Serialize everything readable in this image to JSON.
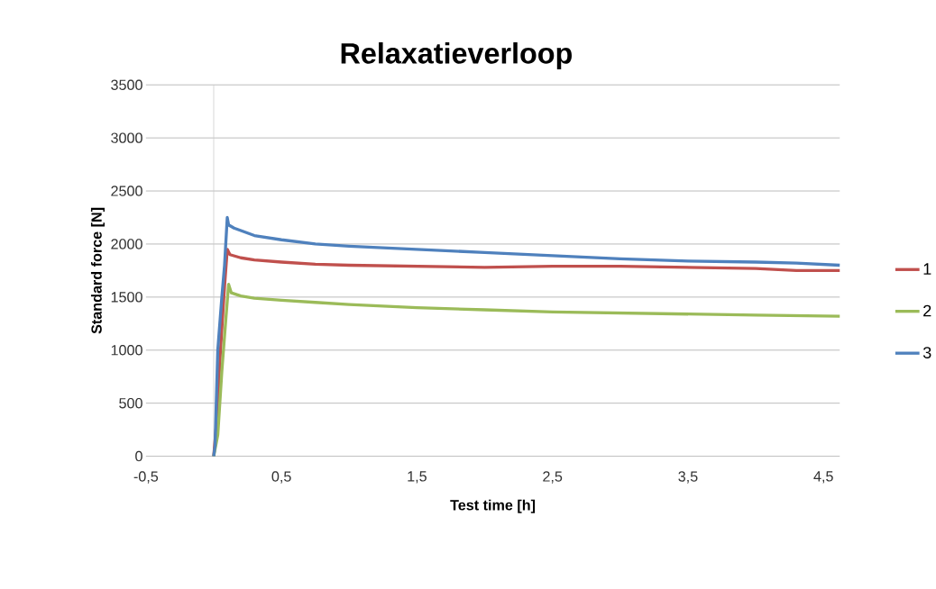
{
  "chart_data": {
    "type": "line",
    "title": "Relaxatieverloop",
    "xlabel": "Test time [h]",
    "ylabel": "Standard force [N]",
    "xlim": [
      -0.5,
      4.62
    ],
    "ylim": [
      0,
      3500
    ],
    "xticks": [
      {
        "value": -0.5,
        "label": "-0,5"
      },
      {
        "value": 0.5,
        "label": "0,5"
      },
      {
        "value": 1.5,
        "label": "1,5"
      },
      {
        "value": 2.5,
        "label": "2,5"
      },
      {
        "value": 3.5,
        "label": "3,5"
      },
      {
        "value": 4.5,
        "label": "4,5"
      }
    ],
    "yticks": [
      0,
      500,
      1000,
      1500,
      2000,
      2500,
      3000,
      3500
    ],
    "grid": "y",
    "legend": "right",
    "marker": "none",
    "line_style": "solid",
    "series": [
      {
        "name": "1",
        "color": "#c0504d",
        "x": [
          0.0,
          0.02,
          0.05,
          0.08,
          0.1,
          0.12,
          0.2,
          0.3,
          0.5,
          0.75,
          1,
          1.5,
          2,
          2.5,
          3,
          3.5,
          4,
          4.3,
          4.62
        ],
        "values": [
          0,
          300,
          1000,
          1600,
          1950,
          1900,
          1870,
          1850,
          1830,
          1810,
          1800,
          1790,
          1780,
          1790,
          1790,
          1780,
          1770,
          1750,
          1750
        ]
      },
      {
        "name": "2",
        "color": "#9bbb59",
        "x": [
          0.0,
          0.03,
          0.06,
          0.09,
          0.11,
          0.13,
          0.2,
          0.3,
          0.5,
          0.75,
          1,
          1.5,
          2,
          2.5,
          3,
          3.5,
          4,
          4.62
        ],
        "values": [
          0,
          200,
          800,
          1300,
          1620,
          1540,
          1510,
          1490,
          1470,
          1450,
          1430,
          1400,
          1380,
          1360,
          1350,
          1340,
          1330,
          1320
        ]
      },
      {
        "name": "3",
        "color": "#4f81bd",
        "x": [
          0.0,
          0.01,
          0.03,
          0.06,
          0.08,
          0.1,
          0.11,
          0.15,
          0.3,
          0.5,
          0.75,
          1,
          1.5,
          2,
          2.5,
          3,
          3.5,
          4,
          4.3,
          4.62
        ],
        "values": [
          0,
          100,
          1000,
          1500,
          1800,
          2250,
          2180,
          2150,
          2080,
          2040,
          2000,
          1980,
          1950,
          1920,
          1890,
          1860,
          1840,
          1830,
          1820,
          1800
        ]
      }
    ]
  }
}
